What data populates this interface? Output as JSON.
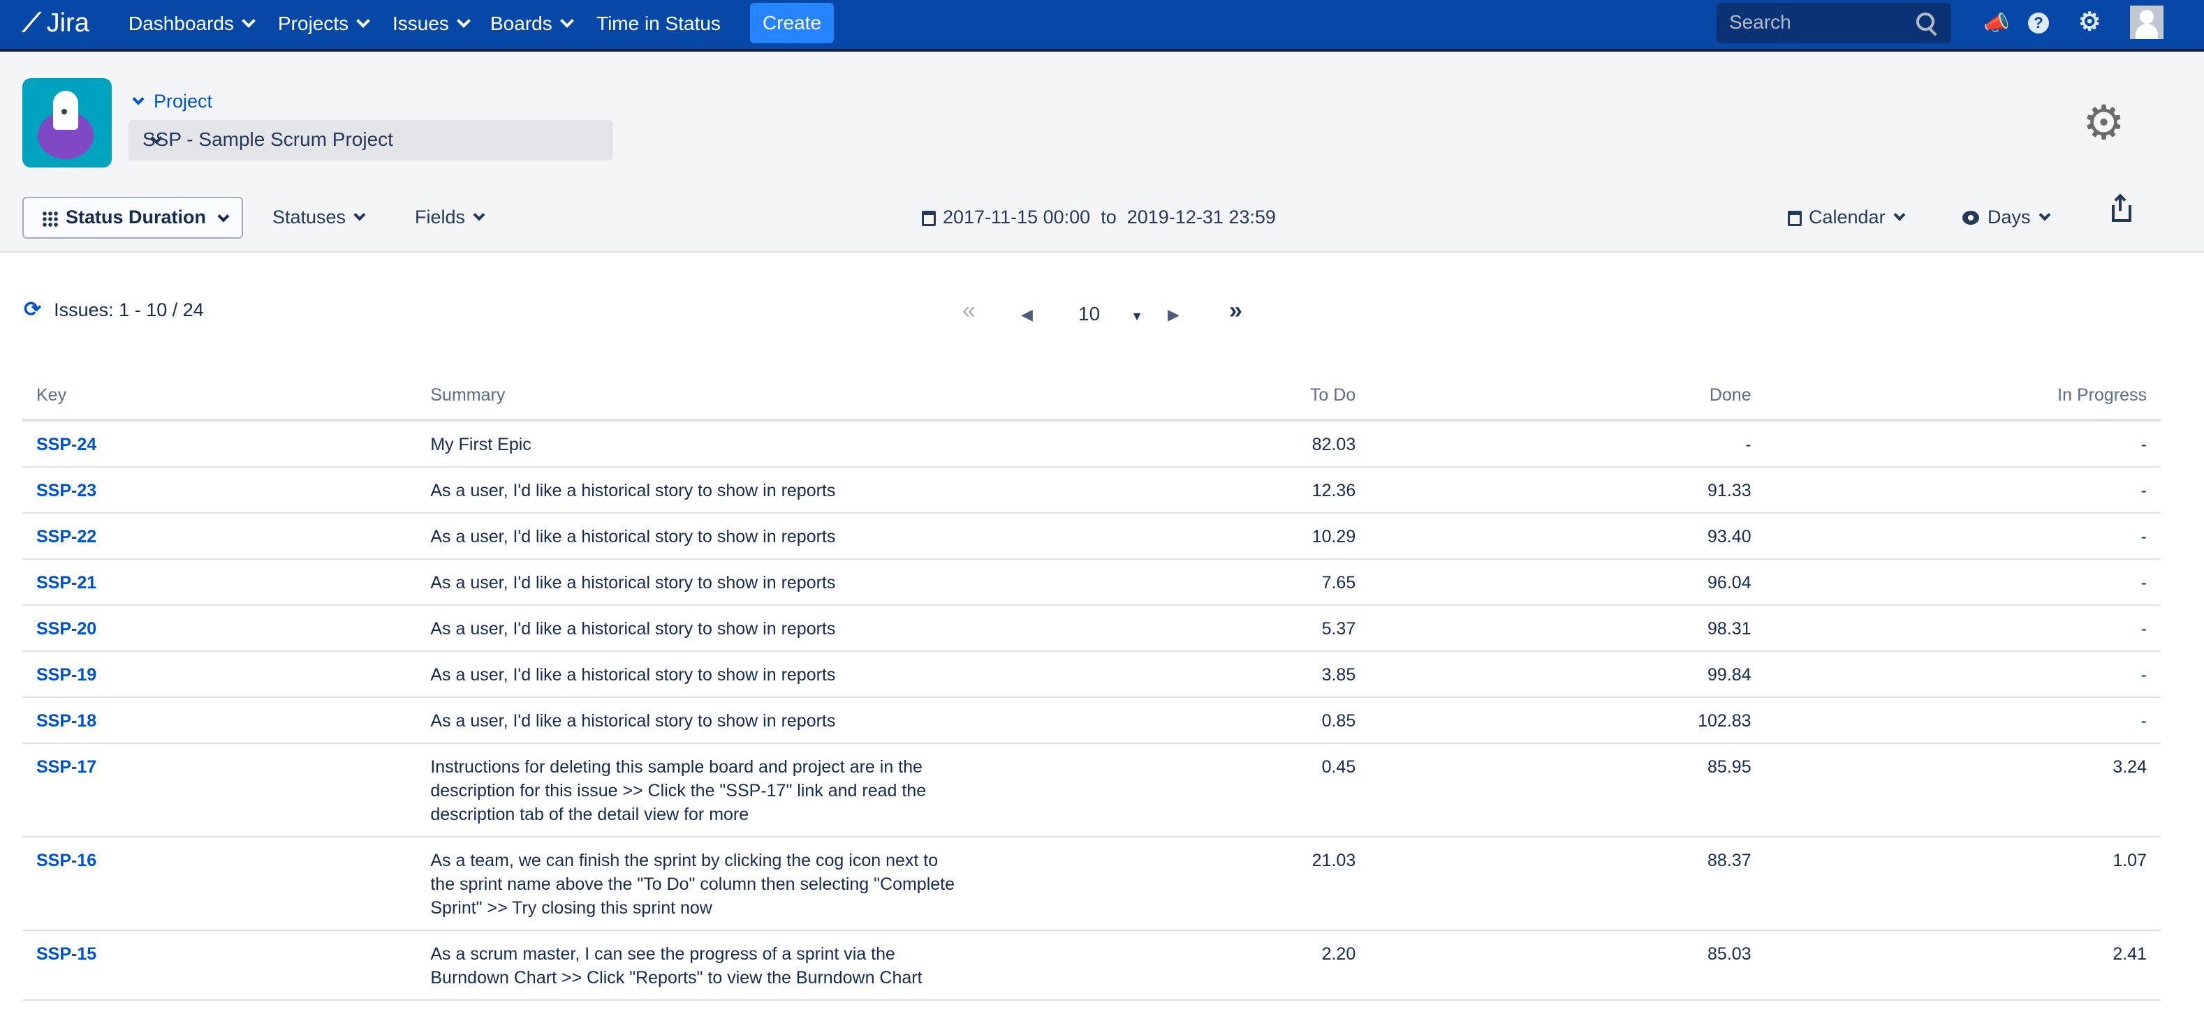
{
  "nav": {
    "brand": "Jira",
    "items": [
      "Dashboards",
      "Projects",
      "Issues",
      "Boards"
    ],
    "time_in_status": "Time in Status",
    "create": "Create",
    "search_placeholder": "Search",
    "icons": [
      "notifications-icon",
      "help-icon",
      "settings-icon",
      "avatar"
    ]
  },
  "project": {
    "label": "Project",
    "selected": "SSP - Sample Scrum Project"
  },
  "toolbar": {
    "view": "Status Duration",
    "statuses": "Statuses",
    "fields": "Fields",
    "date_from": "2017-11-15 00:00",
    "date_to_label": "to",
    "date_to": "2019-12-31 23:59",
    "calendar": "Calendar",
    "unit": "Days"
  },
  "pagination": {
    "issues_label": "Issues: 1 - 10 / 24",
    "page_size": "10",
    "first": "«",
    "prev": "◀",
    "next": "▶",
    "last": "»"
  },
  "table": {
    "columns": [
      "Key",
      "Summary",
      "To Do",
      "Done",
      "In Progress"
    ],
    "rows": [
      [
        "SSP-24",
        "My First Epic",
        "82.03",
        "-",
        "-"
      ],
      [
        "SSP-23",
        "As a user, I'd like a historical story to show in reports",
        "12.36",
        "91.33",
        "-"
      ],
      [
        "SSP-22",
        "As a user, I'd like a historical story to show in reports",
        "10.29",
        "93.40",
        "-"
      ],
      [
        "SSP-21",
        "As a user, I'd like a historical story to show in reports",
        "7.65",
        "96.04",
        "-"
      ],
      [
        "SSP-20",
        "As a user, I'd like a historical story to show in reports",
        "5.37",
        "98.31",
        "-"
      ],
      [
        "SSP-19",
        "As a user, I'd like a historical story to show in reports",
        "3.85",
        "99.84",
        "-"
      ],
      [
        "SSP-18",
        "As a user, I'd like a historical story to show in reports",
        "0.85",
        "102.83",
        "-"
      ],
      [
        "SSP-17",
        "Instructions for deleting this sample board and project are in the description for this issue >> Click the \"SSP-17\" link and read the description tab of the detail view for more",
        "0.45",
        "85.95",
        "3.24"
      ],
      [
        "SSP-16",
        "As a team, we can finish the sprint by clicking the cog icon next to the sprint name above the \"To Do\" column then selecting \"Complete Sprint\" >> Try closing this sprint now",
        "21.03",
        "88.37",
        "1.07"
      ],
      [
        "SSP-15",
        "As a scrum master, I can see the progress of a sprint via the Burndown Chart >> Click \"Reports\" to view the Burndown Chart",
        "2.20",
        "85.03",
        "2.41"
      ]
    ]
  },
  "colors": {
    "nav": "#0747a6",
    "create": "#2684ff",
    "link": "#0052cc"
  }
}
